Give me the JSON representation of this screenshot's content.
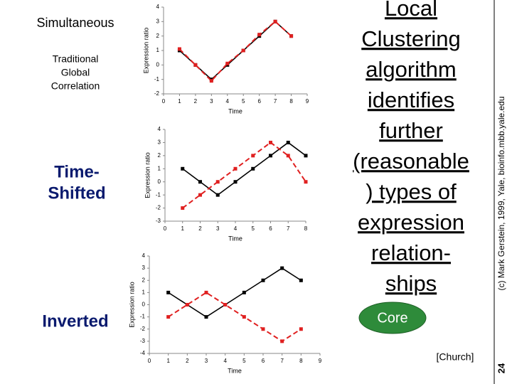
{
  "slide": {
    "labels": {
      "simultaneous": "Simultaneous",
      "traditional": [
        "Traditional",
        "Global",
        "Correlation"
      ],
      "time_shifted": [
        "Time-",
        "Shifted"
      ],
      "inverted": "Inverted"
    },
    "headline": [
      "Local",
      "Clustering",
      "algorithm",
      "identifies",
      "further",
      "(reasonable",
      ") types of",
      "expression",
      "relation-",
      "ships"
    ],
    "button": "Core",
    "citation": "[Church]",
    "credit": "(c) Mark Gerstein, 1999, Yale, bioinfo.mbb.yale.edu",
    "page_number": "24"
  },
  "chart_data": [
    {
      "type": "line",
      "x_label": "Time",
      "y_label": "Expression ratio",
      "x": [
        1,
        2,
        3,
        4,
        5,
        6,
        7,
        8
      ],
      "series": [
        {
          "color": "#000000",
          "values": [
            1,
            0,
            -1,
            0,
            1,
            2,
            3,
            2
          ]
        },
        {
          "color": "#e02020",
          "values": [
            1.1,
            0,
            -1.1,
            0.1,
            1,
            2.1,
            3,
            2
          ]
        }
      ],
      "xlim": [
        0,
        9
      ],
      "xticks": [
        0,
        1,
        2,
        3,
        4,
        5,
        6,
        7,
        8,
        9
      ],
      "ylim": [
        -2,
        4
      ],
      "yticks": [
        -2,
        -1,
        0,
        1,
        2,
        3,
        4
      ]
    },
    {
      "type": "line",
      "x_label": "Time",
      "y_label": "Expression ratio",
      "x": [
        1,
        2,
        3,
        4,
        5,
        6,
        7,
        8
      ],
      "series": [
        {
          "color": "#000000",
          "values": [
            1,
            0,
            -1,
            0,
            1,
            2,
            3,
            2
          ]
        },
        {
          "color": "#e02020",
          "values": [
            -2,
            -1,
            0,
            1,
            2,
            3,
            2,
            0
          ]
        }
      ],
      "xlim": [
        0,
        8
      ],
      "xticks": [
        0,
        1,
        2,
        3,
        4,
        5,
        6,
        7,
        8
      ],
      "ylim": [
        -3,
        4
      ],
      "yticks": [
        -3,
        -2,
        -1,
        0,
        1,
        2,
        3,
        4
      ]
    },
    {
      "type": "line",
      "x_label": "Time",
      "y_label": "Expression ratio",
      "x": [
        1,
        2,
        3,
        4,
        5,
        6,
        7,
        8
      ],
      "series": [
        {
          "color": "#000000",
          "values": [
            1,
            0,
            -1,
            0,
            1,
            2,
            3,
            2
          ]
        },
        {
          "color": "#e02020",
          "values": [
            -1,
            0,
            1,
            0,
            -1,
            -2,
            -3,
            -2
          ]
        }
      ],
      "xlim": [
        0,
        9
      ],
      "xticks": [
        0,
        1,
        2,
        3,
        4,
        5,
        6,
        7,
        8,
        9
      ],
      "ylim": [
        -4,
        4
      ],
      "yticks": [
        -4,
        -3,
        -2,
        -1,
        0,
        1,
        2,
        3,
        4
      ]
    }
  ]
}
